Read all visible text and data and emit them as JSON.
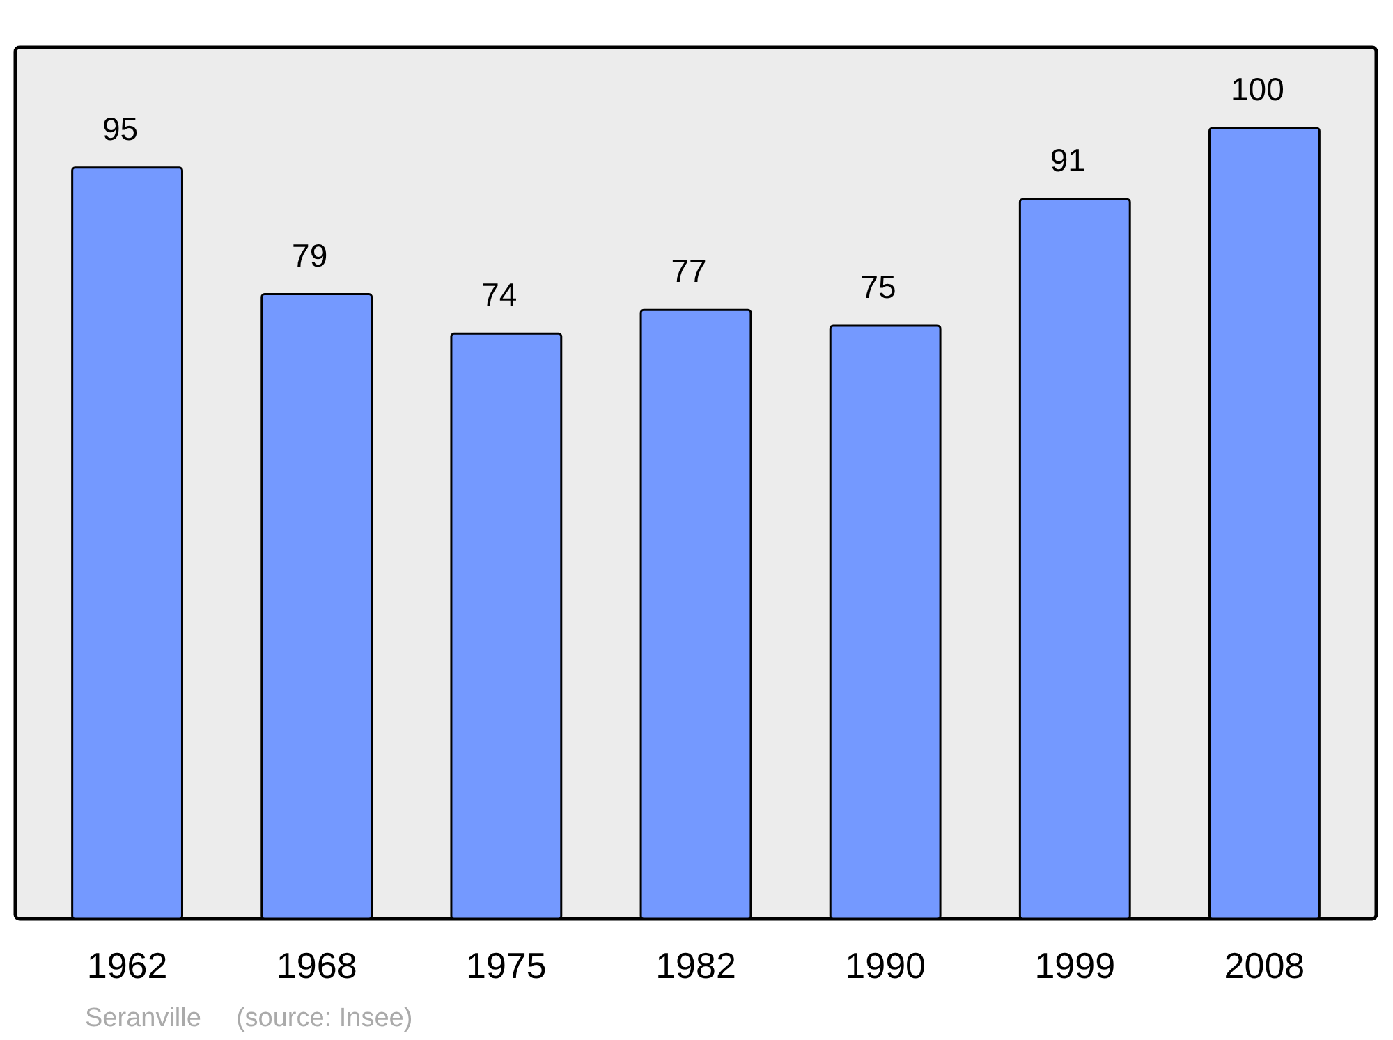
{
  "chart_data": {
    "type": "bar",
    "categories": [
      "1962",
      "1968",
      "1975",
      "1982",
      "1990",
      "1999",
      "2008"
    ],
    "values": [
      95,
      79,
      74,
      77,
      75,
      91,
      100
    ],
    "color": "#7499ff",
    "data_labels": true,
    "annotations": [
      "Seranville",
      "(source: Insee)"
    ]
  }
}
